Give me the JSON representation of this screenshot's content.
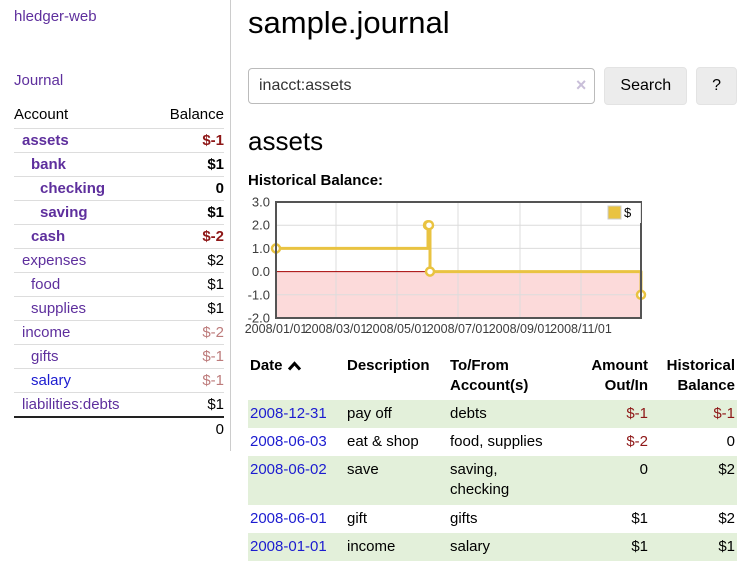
{
  "sidebar": {
    "brand": "hledger-web",
    "nav": {
      "journal": "Journal"
    },
    "accounts_table": {
      "account_header": "Account",
      "balance_header": "Balance",
      "total": "0"
    },
    "accounts": [
      {
        "name": "assets",
        "indent": 0,
        "balance": "$-1",
        "emph": true,
        "variant": "purple"
      },
      {
        "name": "bank",
        "indent": 1,
        "balance": "$1",
        "emph": true,
        "variant": "purple"
      },
      {
        "name": "checking",
        "indent": 2,
        "balance": "0",
        "emph": true,
        "variant": "purple"
      },
      {
        "name": "saving",
        "indent": 2,
        "balance": "$1",
        "emph": true,
        "variant": "purple"
      },
      {
        "name": "cash",
        "indent": 1,
        "balance": "$-2",
        "emph": true,
        "variant": "purple"
      },
      {
        "name": "expenses",
        "indent": 0,
        "balance": "$2",
        "emph": false,
        "variant": "purple"
      },
      {
        "name": "food",
        "indent": 1,
        "balance": "$1",
        "emph": false,
        "variant": "purple"
      },
      {
        "name": "supplies",
        "indent": 1,
        "balance": "$1",
        "emph": false,
        "variant": "purple"
      },
      {
        "name": "income",
        "indent": 0,
        "balance": "$-2",
        "emph": false,
        "variant": "purple"
      },
      {
        "name": "gifts",
        "indent": 1,
        "balance": "$-1",
        "emph": false,
        "variant": "purple"
      },
      {
        "name": "salary",
        "indent": 1,
        "balance": "$-1",
        "emph": false,
        "variant": "blue"
      },
      {
        "name": "liabilities:debts",
        "indent": 0,
        "balance": "$1",
        "emph": false,
        "variant": "purple"
      }
    ]
  },
  "main": {
    "title": "sample.journal",
    "search": {
      "query": "inacct:assets",
      "clear_icon": "×",
      "search_button": "Search",
      "help_button": "?"
    },
    "account_heading": "assets"
  },
  "register": {
    "headers": {
      "date": "Date",
      "description": "Description",
      "accounts": "To/From Account(s)",
      "amount": "Amount Out/In",
      "balance": "Historical Balance"
    },
    "rows": [
      {
        "date": "2008-12-31",
        "description": "pay off",
        "accounts": "debts",
        "amount": "$-1",
        "balance": "$-1"
      },
      {
        "date": "2008-06-03",
        "description": "eat & shop",
        "accounts": "food, supplies",
        "amount": "$-2",
        "balance": "0"
      },
      {
        "date": "2008-06-02",
        "description": "save",
        "accounts": "saving, checking",
        "amount": "0",
        "balance": "$2"
      },
      {
        "date": "2008-06-01",
        "description": "gift",
        "accounts": "gifts",
        "amount": "$1",
        "balance": "$2"
      },
      {
        "date": "2008-01-01",
        "description": "income",
        "accounts": "salary",
        "amount": "$1",
        "balance": "$1"
      }
    ]
  },
  "chart_data": {
    "type": "line",
    "step": true,
    "title": "Historical Balance:",
    "x": [
      "2008-01-01",
      "2008-06-01",
      "2008-06-02",
      "2008-06-03",
      "2008-12-31"
    ],
    "series": [
      {
        "name": "$",
        "color": "#e9c341",
        "values": [
          1,
          2,
          2,
          0,
          -1
        ]
      }
    ],
    "xrange": [
      "2008-01-01",
      "2008-12-31"
    ],
    "ylim": [
      -2,
      3
    ],
    "yticks": [
      {
        "v": 3,
        "label": "3.0"
      },
      {
        "v": 2,
        "label": "2.0"
      },
      {
        "v": 1,
        "label": "1.0"
      },
      {
        "v": 0,
        "label": "0.0"
      },
      {
        "v": -1,
        "label": "-1.0"
      },
      {
        "v": -2,
        "label": "-2.0"
      }
    ],
    "xticks": [
      {
        "date": "2008-01-01",
        "label": "2008/01/01"
      },
      {
        "date": "2008-03-01",
        "label": "2008/03/01"
      },
      {
        "date": "2008-05-01",
        "label": "2008/05/01"
      },
      {
        "date": "2008-07-01",
        "label": "2008/07/01"
      },
      {
        "date": "2008-09-01",
        "label": "2008/09/01"
      },
      {
        "date": "2008-11-01",
        "label": "2008/11/01"
      }
    ],
    "grid": true,
    "legend_position": "top-right",
    "colors": {
      "grid": "#dcdcdc",
      "border": "#545454",
      "zero_line": "#a40000",
      "negative_fill": "#fcdada",
      "marker_fill": "#ffffff",
      "legend_box_border": "#cccccc",
      "tick_text": "#3c3c3c"
    }
  },
  "colors": {
    "link_purple": "#5e2f9d",
    "link_blue": "#1c1cd0",
    "negative_strong": "#8e1717",
    "negative_soft": "#bd7b7b",
    "row_stripe_green": "#e3f0da",
    "button_gray": "#ececec"
  }
}
